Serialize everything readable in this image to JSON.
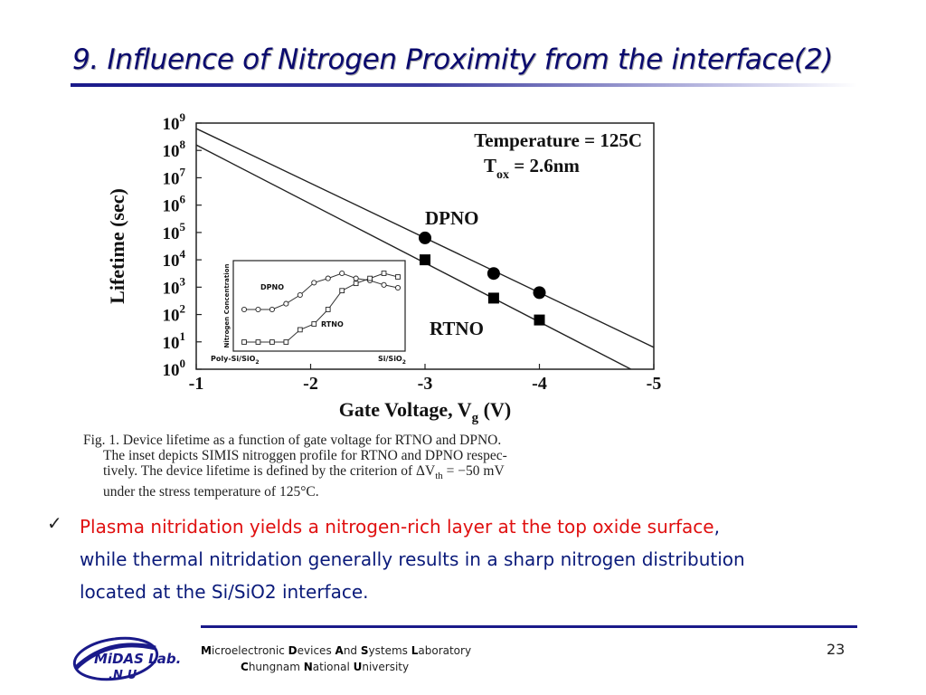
{
  "title": "9. Influence of Nitrogen Proximity from the interface(2)",
  "chart_data": {
    "type": "line",
    "xlabel": "Gate Voltage, V",
    "xlabel_sub": "g",
    "xlabel_unit": " (V)",
    "ylabel": "Lifetime (sec)",
    "xlim": [
      -1,
      -5
    ],
    "ylim_exponent": [
      0,
      9
    ],
    "x_ticks": [
      "-1",
      "-2",
      "-3",
      "-4",
      "-5"
    ],
    "y_tick_exponents": [
      "0",
      "1",
      "2",
      "3",
      "4",
      "5",
      "6",
      "7",
      "8",
      "9"
    ],
    "y_tick_base": "10",
    "annotation_temp": "Temperature = 125C",
    "annotation_tox_main": "T",
    "annotation_tox_sub": "ox",
    "annotation_tox_val": " = 2.6nm",
    "series": [
      {
        "name": "DPNO",
        "marker": "circle",
        "points": [
          [
            -3,
            4.8
          ],
          [
            -3.6,
            3.5
          ],
          [
            -4,
            2.8
          ]
        ],
        "fit": [
          [
            -1,
            8.8
          ],
          [
            -5,
            0.8
          ]
        ]
      },
      {
        "name": "RTNO",
        "marker": "square",
        "points": [
          [
            -3,
            4.0
          ],
          [
            -3.6,
            2.6
          ],
          [
            -4,
            1.8
          ]
        ],
        "fit": [
          [
            -1,
            8.2
          ],
          [
            -4.8,
            0.0
          ]
        ]
      }
    ],
    "inset": {
      "ylabel": "Nitrogen Concentration",
      "left_label": "Poly-Si/SiO",
      "left_label_sub": "2",
      "right_label": "Si/SiO",
      "right_label_sub": "2",
      "series": [
        {
          "name": "DPNO",
          "marker": "circle",
          "values": [
            0.5,
            0.5,
            0.5,
            0.58,
            0.7,
            0.87,
            0.93,
            1.0,
            0.93,
            0.9,
            0.84,
            0.8
          ]
        },
        {
          "name": "RTNO",
          "marker": "square",
          "values": [
            0.05,
            0.05,
            0.05,
            0.05,
            0.22,
            0.3,
            0.5,
            0.76,
            0.86,
            0.93,
            1.0,
            0.95
          ]
        }
      ]
    }
  },
  "caption": {
    "lines": [
      "Fig.  1.    Device lifetime as a function of gate voltage for RTNO and DPNO.",
      "The inset depicts SIMIS nitroggen profile for RTNO and DPNO respec-",
      "tively. The device lifetime is defined by the criterion of ΔV",
      "under the stress temperature of 125°C."
    ],
    "line3_sub": "th",
    "line3_tail": " = −50 mV"
  },
  "bullet": {
    "check": "✓",
    "highlight": "Plasma nitridation yields a nitrogen-rich layer at the top oxide surface",
    "comma": ",",
    "line2": "while thermal nitridation generally results in a sharp nitrogen distribution",
    "line3": "located at the Si/SiO2 interface."
  },
  "footer": {
    "logo_line1": "MiDAS Lab.",
    "logo_line2": ".N.U",
    "lab_m": "M",
    "lab_m_rest": "icroelectronic ",
    "lab_d": "D",
    "lab_d_rest": "evices ",
    "lab_a": "A",
    "lab_a_rest": "nd ",
    "lab_s": "S",
    "lab_s_rest": "ystems ",
    "lab_l": "L",
    "lab_l_rest": "aboratory",
    "uni_c": "C",
    "uni_c_rest": "hungnam ",
    "uni_n": "N",
    "uni_n_rest": "ational ",
    "uni_u": "U",
    "uni_u_rest": "niversity",
    "page_number": "23"
  },
  "colors": {
    "title": "#0a0a6e",
    "highlight": "#e01010",
    "body_text": "#0a1a7a",
    "rule": "#1a1a8a"
  }
}
